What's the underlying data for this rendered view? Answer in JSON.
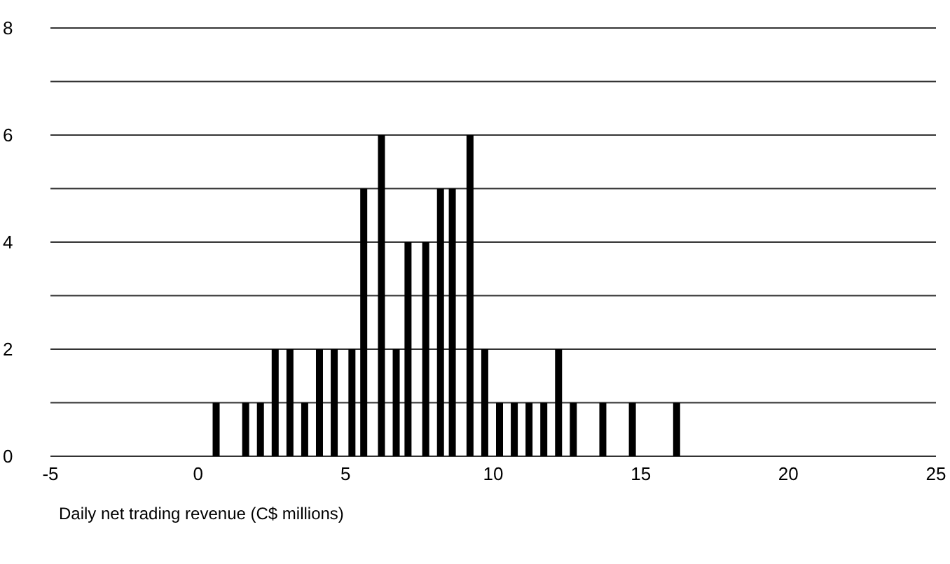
{
  "chart_data": {
    "type": "bar",
    "xlabel": "Daily net trading revenue (C$ millions)",
    "x": [
      0.6,
      1.6,
      2.1,
      2.6,
      3.1,
      3.6,
      4.1,
      4.6,
      5.2,
      5.6,
      6.2,
      6.7,
      7.1,
      7.7,
      8.2,
      8.6,
      9.2,
      9.7,
      10.2,
      10.7,
      11.2,
      11.7,
      12.2,
      12.7,
      13.7,
      14.7,
      16.2
    ],
    "values": [
      1,
      1,
      1,
      2,
      2,
      1,
      2,
      2,
      2,
      5,
      6,
      2,
      4,
      4,
      5,
      5,
      6,
      2,
      1,
      1,
      1,
      1,
      2,
      1,
      1,
      1,
      1
    ],
    "color": "#000000",
    "xlim": [
      -5,
      25
    ],
    "xticks": [
      -5,
      0,
      5,
      10,
      15,
      20,
      25
    ],
    "ylim": [
      0,
      8
    ],
    "yticks": [
      0,
      {
        "value": 1,
        "label": null
      },
      2,
      {
        "value": 3,
        "label": null
      },
      4,
      {
        "value": 5,
        "label": null
      },
      6,
      {
        "value": 7,
        "label": null
      },
      8
    ],
    "grid": "y"
  }
}
